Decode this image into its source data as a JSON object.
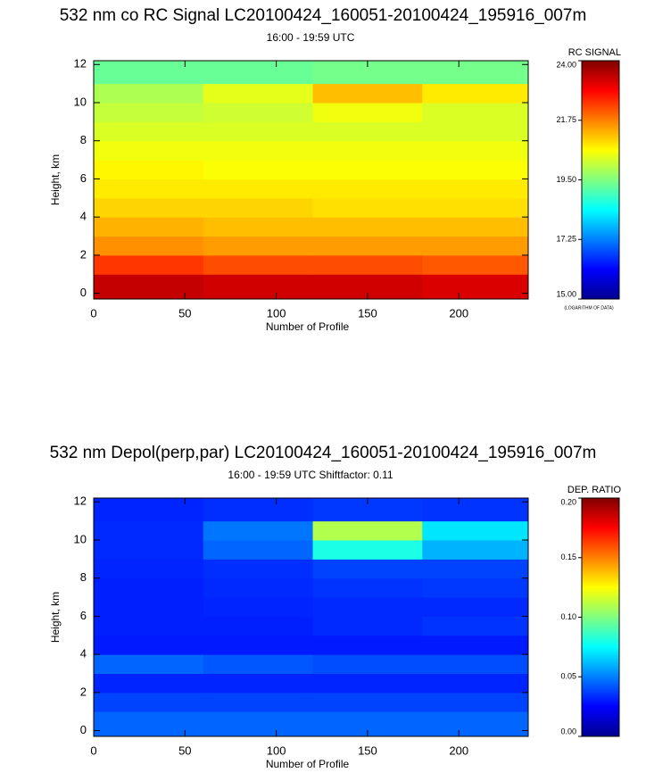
{
  "chart_data": [
    {
      "type": "heatmap",
      "title": "532 nm co RC Signal LC20100424_160051-20100424_195916_007m",
      "subtitle": "16:00 - 19:59 UTC",
      "x_label": "Number of Profile",
      "y_label": "Height, km",
      "xlim": [
        0,
        238
      ],
      "ylim": [
        -0.3,
        12.2
      ],
      "xticks": [
        0,
        50,
        100,
        150,
        200
      ],
      "yticks": [
        0,
        2,
        4,
        6,
        8,
        10,
        12
      ],
      "x_bins": [
        0,
        60,
        120,
        180,
        238
      ],
      "y_bins": [
        -0.3,
        1,
        2,
        3,
        4,
        5,
        6,
        7,
        8,
        9,
        10,
        11,
        12.2
      ],
      "values": [
        [
          23.4,
          23.3,
          23.3,
          23.2
        ],
        [
          22.4,
          22.2,
          22.2,
          22.1
        ],
        [
          21.6,
          21.5,
          21.5,
          21.5
        ],
        [
          21.3,
          21.2,
          21.2,
          21.2
        ],
        [
          21.0,
          21.0,
          20.9,
          20.9
        ],
        [
          20.8,
          20.8,
          20.8,
          20.8
        ],
        [
          20.7,
          20.6,
          20.6,
          20.6
        ],
        [
          20.5,
          20.5,
          20.5,
          20.5
        ],
        [
          20.3,
          20.3,
          20.3,
          20.3
        ],
        [
          20.1,
          20.2,
          20.5,
          20.3
        ],
        [
          19.9,
          20.4,
          21.2,
          20.8
        ],
        [
          19.3,
          19.3,
          19.4,
          19.4
        ]
      ],
      "colormap": [
        "#00008f",
        "#0000ff",
        "#0080ff",
        "#00ffff",
        "#80ff80",
        "#ffff00",
        "#ff8000",
        "#ff0000",
        "#800000"
      ],
      "colorbar": {
        "label": "RC SIGNAL",
        "note": "(LOGARITHM OF DATA)",
        "range": [
          15,
          24
        ],
        "ticks": [
          {
            "value": 15,
            "label": "15.00"
          },
          {
            "value": 17.25,
            "label": "17.25"
          },
          {
            "value": 19.5,
            "label": "19.50"
          },
          {
            "value": 21.75,
            "label": "21.75"
          },
          {
            "value": 24,
            "label": "24.00"
          }
        ]
      }
    },
    {
      "type": "heatmap",
      "title": "532 nm Depol(perp,par) LC20100424_160051-20100424_195916_007m",
      "subtitle": "16:00 - 19:59 UTC Shiftfactor: 0.11",
      "x_label": "Number of Profile",
      "y_label": "Height, km",
      "xlim": [
        0,
        238
      ],
      "ylim": [
        -0.3,
        12.2
      ],
      "xticks": [
        0,
        50,
        100,
        150,
        200
      ],
      "yticks": [
        0,
        2,
        4,
        6,
        8,
        10,
        12
      ],
      "x_bins": [
        0,
        60,
        120,
        180,
        238
      ],
      "y_bins": [
        -0.3,
        1,
        2,
        3,
        4,
        5,
        6,
        7,
        8,
        9,
        10,
        11,
        12.2
      ],
      "values": [
        [
          0.045,
          0.045,
          0.045,
          0.045
        ],
        [
          0.038,
          0.038,
          0.038,
          0.038
        ],
        [
          0.032,
          0.032,
          0.032,
          0.032
        ],
        [
          0.045,
          0.042,
          0.04,
          0.04
        ],
        [
          0.03,
          0.03,
          0.03,
          0.03
        ],
        [
          0.031,
          0.031,
          0.033,
          0.035
        ],
        [
          0.031,
          0.032,
          0.033,
          0.033
        ],
        [
          0.031,
          0.033,
          0.035,
          0.036
        ],
        [
          0.032,
          0.034,
          0.038,
          0.038
        ],
        [
          0.033,
          0.045,
          0.08,
          0.06
        ],
        [
          0.033,
          0.048,
          0.11,
          0.07
        ],
        [
          0.032,
          0.034,
          0.036,
          0.035
        ]
      ],
      "colormap": [
        "#00008f",
        "#0000ff",
        "#0080ff",
        "#00ffff",
        "#80ff80",
        "#ffff00",
        "#ff8000",
        "#ff0000",
        "#800000"
      ],
      "colorbar": {
        "label": "DEP. RATIO",
        "range": [
          0,
          0.2
        ],
        "ticks": [
          {
            "value": 0,
            "label": "0.00"
          },
          {
            "value": 0.05,
            "label": "0.05"
          },
          {
            "value": 0.1,
            "label": "0.10"
          },
          {
            "value": 0.15,
            "label": "0.15"
          },
          {
            "value": 0.2,
            "label": "0.20"
          }
        ]
      }
    }
  ]
}
